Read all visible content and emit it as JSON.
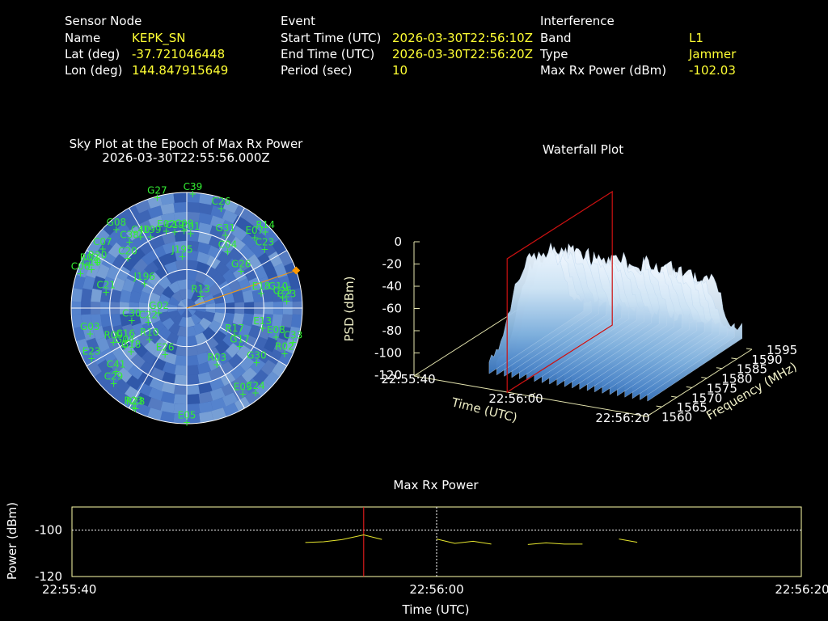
{
  "header": {
    "sensor": {
      "heading": "Sensor Node",
      "rows": [
        {
          "label": "Name",
          "value": "KEPK_SN"
        },
        {
          "label": "Lat (deg)",
          "value": "-37.721046448"
        },
        {
          "label": "Lon (deg)",
          "value": "144.847915649"
        }
      ]
    },
    "event": {
      "heading": "Event",
      "rows": [
        {
          "label": "Start Time (UTC)",
          "value": "2026-03-30T22:56:10Z"
        },
        {
          "label": "End Time (UTC)",
          "value": "2026-03-30T22:56:20Z"
        },
        {
          "label": "Period (sec)",
          "value": "10"
        }
      ]
    },
    "interference": {
      "heading": "Interference",
      "rows": [
        {
          "label": "Band",
          "value": "L1"
        },
        {
          "label": "Type",
          "value": "Jammer"
        },
        {
          "label": "Max Rx Power (dBm)",
          "value": "-102.03"
        }
      ]
    }
  },
  "chart_data": [
    {
      "type": "scatter",
      "name": "skyplot",
      "title": "Sky Plot at the Epoch of Max Rx Power",
      "subtitle": "2026-03-30T22:55:56.000Z",
      "coordinate_system": "polar (azimuth deg clockwise from north, elevation deg; center = 90 elev, rim = 0 elev)",
      "elevation_rings": [
        0,
        30,
        60
      ],
      "interference_bearing_deg": 71,
      "colors": {
        "satellite": "#33ee33",
        "background": "#3a5fb0",
        "bearing": "#ff9900"
      },
      "satellites": [
        {
          "id": "C39",
          "az": 3,
          "el": 1
        },
        {
          "id": "G27",
          "az": 345,
          "el": 1
        },
        {
          "id": "C26",
          "az": 19,
          "el": 8
        },
        {
          "id": "R14",
          "az": 46,
          "el": 5
        },
        {
          "id": "E07",
          "az": 44,
          "el": 14
        },
        {
          "id": "C23",
          "az": 53,
          "el": 14
        },
        {
          "id": "G31",
          "az": 28,
          "el": 26
        },
        {
          "id": "C04",
          "az": 36,
          "el": 36
        },
        {
          "id": "G08",
          "az": 318,
          "el": 8
        },
        {
          "id": "C40",
          "az": 327,
          "el": 24
        },
        {
          "id": "J199",
          "az": 333,
          "el": 28
        },
        {
          "id": "E02",
          "az": 345,
          "el": 28
        },
        {
          "id": "C19",
          "az": 351,
          "el": 30
        },
        {
          "id": "C09",
          "az": 358,
          "el": 30
        },
        {
          "id": "C01",
          "az": 3,
          "el": 32
        },
        {
          "id": "C07",
          "az": 305,
          "el": 10
        },
        {
          "id": "C38",
          "az": 319,
          "el": 22
        },
        {
          "id": "C20",
          "az": 310,
          "el": 30
        },
        {
          "id": "J195",
          "az": 355,
          "el": 50
        },
        {
          "id": "G26",
          "az": 56,
          "el": 39
        },
        {
          "id": "R02",
          "az": 294,
          "el": 7
        },
        {
          "id": "R20",
          "az": 297,
          "el": 12
        },
        {
          "id": "C10",
          "az": 292,
          "el": 10
        },
        {
          "id": "C06",
          "az": 288,
          "el": 3
        },
        {
          "id": "C21",
          "az": 281,
          "el": 26
        },
        {
          "id": "J196",
          "az": 300,
          "el": 52
        },
        {
          "id": "R13",
          "az": 50,
          "el": 76
        },
        {
          "id": "E18",
          "az": 79,
          "el": 31
        },
        {
          "id": "C25",
          "az": 84,
          "el": 15
        },
        {
          "id": "G10",
          "az": 81,
          "el": 18
        },
        {
          "id": "C23b",
          "label": "C23",
          "az": 86,
          "el": 12
        },
        {
          "id": "G02",
          "az": 260,
          "el": 68
        },
        {
          "id": "C30",
          "az": 257,
          "el": 46
        },
        {
          "id": "C22",
          "az": 250,
          "el": 58
        },
        {
          "id": "E13",
          "az": 105,
          "el": 29
        },
        {
          "id": "E08",
          "az": 108,
          "el": 17
        },
        {
          "id": "C33",
          "az": 108,
          "el": 3
        },
        {
          "id": "G03",
          "az": 255,
          "el": 12
        },
        {
          "id": "R09",
          "az": 245,
          "el": 27
        },
        {
          "id": "G04",
          "az": 238,
          "el": 33
        },
        {
          "id": "C16",
          "az": 242,
          "el": 36
        },
        {
          "id": "R10",
          "az": 230,
          "el": 52
        },
        {
          "id": "G18",
          "az": 232,
          "el": 35
        },
        {
          "id": "E26",
          "az": 205,
          "el": 50
        },
        {
          "id": "R17",
          "az": 120,
          "el": 47
        },
        {
          "id": "G17",
          "az": 126,
          "el": 39
        },
        {
          "id": "R03",
          "az": 152,
          "el": 40
        },
        {
          "id": "G30",
          "az": 128,
          "el": 21
        },
        {
          "id": "R02b",
          "label": "R02",
          "az": 115,
          "el": 6
        },
        {
          "id": "E23",
          "az": 242,
          "el": 6
        },
        {
          "id": "C41",
          "az": 228,
          "el": 16
        },
        {
          "id": "C29",
          "az": 224,
          "el": 8
        },
        {
          "id": "R23",
          "az": 208,
          "el": 2
        },
        {
          "id": "R28",
          "az": 207,
          "el": 2
        },
        {
          "id": "E03",
          "az": 147,
          "el": 10
        },
        {
          "id": "C24",
          "az": 141,
          "el": 5
        },
        {
          "id": "E05",
          "az": 180,
          "el": 1
        }
      ]
    },
    {
      "type": "area",
      "name": "waterfall",
      "title": "Waterfall Plot",
      "xlabel": "Time (UTC)",
      "ylabel": "Frequency (MHz)",
      "zlabel": "PSD (dBm)",
      "x_ticks": [
        "22:55:40",
        "22:56:00",
        "22:56:20"
      ],
      "y_ticks": [
        1560,
        1565,
        1570,
        1575,
        1580,
        1585,
        1590,
        1595
      ],
      "z_ticks": [
        0,
        -20,
        -40,
        -60,
        -80,
        -100,
        -120
      ],
      "zlim": [
        -120,
        0
      ],
      "ylim": [
        1560,
        1595
      ],
      "marker_time": "22:55:56",
      "surface_psd_range_dbm": [
        -110,
        -15
      ],
      "colors": {
        "surface_high": "#eef7ff",
        "surface_low": "#3f7fc8",
        "marker": "#cc1111",
        "axes": "#e6e6b0"
      }
    },
    {
      "type": "line",
      "name": "maxrx",
      "title": "Max Rx Power",
      "xlabel": "Time (UTC)",
      "ylabel": "Power (dBm)",
      "x_ticks": [
        "22:55:40",
        "22:56:00",
        "22:56:20"
      ],
      "y_ticks": [
        -100,
        -120
      ],
      "xlim_seconds_after_225540": [
        0,
        40
      ],
      "ylim": [
        -120,
        -90
      ],
      "marker_max_seconds": 16,
      "marker_current_seconds": 20,
      "colors": {
        "line": "#e6e62e",
        "max_marker": "#ff2020",
        "current_marker": "#ffffff",
        "frame": "#ffffaa"
      },
      "segments": [
        {
          "x": [
            12.8,
            13.8,
            14.8,
            16.0,
            17.0
          ],
          "y": [
            -105.3,
            -105,
            -104.1,
            -102.03,
            -104
          ]
        },
        {
          "x": [
            20.0,
            21.0,
            22.0,
            23.0
          ],
          "y": [
            -103.8,
            -105.7,
            -104.8,
            -106
          ]
        },
        {
          "x": [
            25.0,
            26.0,
            27.0,
            28.0
          ],
          "y": [
            -106.2,
            -105.5,
            -106,
            -106
          ]
        },
        {
          "x": [
            30.0,
            31.0
          ],
          "y": [
            -103.8,
            -105.2
          ]
        }
      ]
    }
  ]
}
